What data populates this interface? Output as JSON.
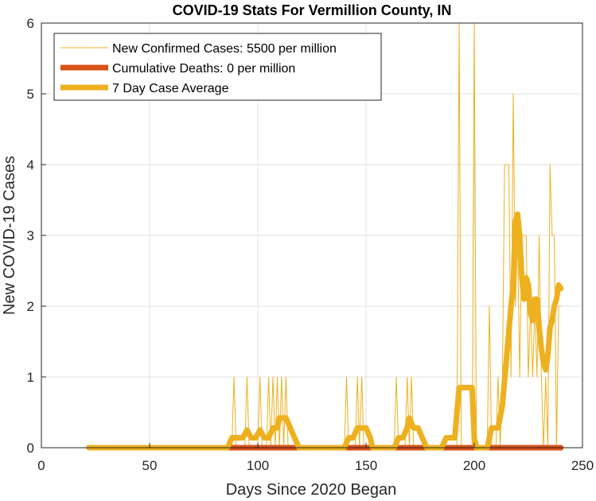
{
  "chart_data": {
    "type": "line",
    "title": "COVID-19 Stats For Vermillion County, IN",
    "xlabel": "Days Since 2020 Began",
    "ylabel": "New COVID-19 Cases",
    "xlim": [
      0,
      250
    ],
    "ylim": [
      0,
      6
    ],
    "xticks": [
      "0",
      "50",
      "100",
      "150",
      "200",
      "250"
    ],
    "yticks": [
      "0",
      "1",
      "2",
      "3",
      "4",
      "5",
      "6"
    ],
    "grid": true,
    "legend_position": "top-left",
    "series": [
      {
        "name": "New Confirmed Cases: 5500 per million",
        "style": "thin",
        "color": "#EDB120",
        "points": [
          [
            22,
            0
          ],
          [
            88,
            0
          ],
          [
            89,
            1
          ],
          [
            90,
            0
          ],
          [
            94,
            0
          ],
          [
            95,
            1
          ],
          [
            96,
            0
          ],
          [
            100,
            0
          ],
          [
            101,
            1
          ],
          [
            102,
            0
          ],
          [
            104,
            0
          ],
          [
            105,
            1
          ],
          [
            106,
            0
          ],
          [
            107,
            1
          ],
          [
            108,
            0
          ],
          [
            109,
            1
          ],
          [
            110,
            0
          ],
          [
            111,
            1
          ],
          [
            112,
            0
          ],
          [
            113,
            1
          ],
          [
            114,
            0
          ],
          [
            140,
            0
          ],
          [
            141,
            1
          ],
          [
            142,
            0
          ],
          [
            145,
            0
          ],
          [
            146,
            1
          ],
          [
            147,
            0
          ],
          [
            148,
            1
          ],
          [
            149,
            0
          ],
          [
            163,
            0
          ],
          [
            164,
            1
          ],
          [
            165,
            0
          ],
          [
            168,
            0
          ],
          [
            169,
            1
          ],
          [
            170,
            0
          ],
          [
            171,
            1
          ],
          [
            172,
            0
          ],
          [
            192,
            0
          ],
          [
            193,
            6
          ],
          [
            194,
            0
          ],
          [
            199,
            0
          ],
          [
            200,
            6
          ],
          [
            201,
            0
          ],
          [
            206,
            0
          ],
          [
            207,
            2
          ],
          [
            208,
            0
          ],
          [
            210,
            0
          ],
          [
            211,
            1
          ],
          [
            212,
            0
          ],
          [
            213,
            1
          ],
          [
            214,
            4
          ],
          [
            216,
            4
          ],
          [
            217,
            1
          ],
          [
            218,
            5
          ],
          [
            219,
            2
          ],
          [
            220,
            3
          ],
          [
            221,
            1
          ],
          [
            222,
            3
          ],
          [
            224,
            3
          ],
          [
            225,
            1
          ],
          [
            226,
            2
          ],
          [
            227,
            1
          ],
          [
            228,
            2
          ],
          [
            229,
            1
          ],
          [
            230,
            3
          ],
          [
            231,
            1
          ],
          [
            232,
            0
          ],
          [
            233,
            1
          ],
          [
            234,
            0
          ],
          [
            235,
            4
          ],
          [
            236,
            3
          ],
          [
            237,
            3
          ],
          [
            238,
            0
          ],
          [
            239,
            2
          ],
          [
            240,
            2
          ]
        ]
      },
      {
        "name": "Cumulative Deaths: 0 per million",
        "style": "thick",
        "color": "#D95319",
        "points": [
          [
            22,
            0
          ],
          [
            240,
            0
          ]
        ]
      },
      {
        "name": "7 Day Case Average",
        "style": "thick",
        "color": "#EDB120",
        "points": [
          [
            22,
            0
          ],
          [
            86,
            0
          ],
          [
            88,
            0.14
          ],
          [
            93,
            0.14
          ],
          [
            95,
            0.25
          ],
          [
            97,
            0.14
          ],
          [
            99,
            0.14
          ],
          [
            101,
            0.25
          ],
          [
            103,
            0.14
          ],
          [
            105,
            0.14
          ],
          [
            107,
            0.28
          ],
          [
            109,
            0.28
          ],
          [
            110,
            0.42
          ],
          [
            113,
            0.42
          ],
          [
            115,
            0.28
          ],
          [
            117,
            0.14
          ],
          [
            119,
            0
          ],
          [
            140,
            0
          ],
          [
            142,
            0.14
          ],
          [
            144,
            0.14
          ],
          [
            146,
            0.28
          ],
          [
            150,
            0.28
          ],
          [
            152,
            0.14
          ],
          [
            153,
            0
          ],
          [
            163,
            0
          ],
          [
            165,
            0.14
          ],
          [
            167,
            0.14
          ],
          [
            169,
            0.28
          ],
          [
            170,
            0.42
          ],
          [
            172,
            0.28
          ],
          [
            174,
            0.28
          ],
          [
            176,
            0.14
          ],
          [
            178,
            0
          ],
          [
            185,
            0
          ],
          [
            187,
            0.14
          ],
          [
            191,
            0.14
          ],
          [
            193,
            0.85
          ],
          [
            199,
            0.85
          ],
          [
            200,
            0.14
          ],
          [
            201,
            0
          ],
          [
            206,
            0
          ],
          [
            208,
            0.28
          ],
          [
            211,
            0.28
          ],
          [
            213,
            0.6
          ],
          [
            215,
            1.3
          ],
          [
            217,
            2
          ],
          [
            218,
            2.3
          ],
          [
            219,
            3.2
          ],
          [
            220,
            3.3
          ],
          [
            221,
            3
          ],
          [
            222,
            2.4
          ],
          [
            223,
            2.1
          ],
          [
            224,
            2.4
          ],
          [
            225,
            2.3
          ],
          [
            226,
            1.9
          ],
          [
            227,
            1.8
          ],
          [
            228,
            2.1
          ],
          [
            229,
            2.1
          ],
          [
            230,
            1.7
          ],
          [
            231,
            1.4
          ],
          [
            232,
            1.2
          ],
          [
            233,
            1.1
          ],
          [
            234,
            1.3
          ],
          [
            235,
            1.7
          ],
          [
            236,
            1.8
          ],
          [
            237,
            2
          ],
          [
            238,
            2.1
          ],
          [
            239,
            2.3
          ],
          [
            240,
            2.25
          ]
        ]
      }
    ]
  }
}
